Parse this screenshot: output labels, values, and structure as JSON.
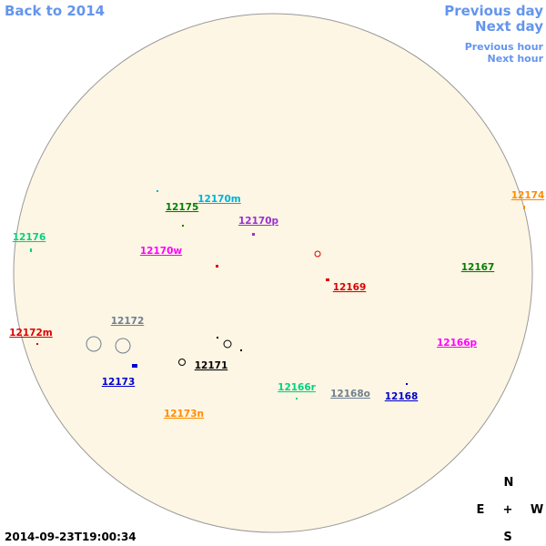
{
  "nav": {
    "back": "Back to 2014",
    "previous_day": "Previous day",
    "next_day": "Next day",
    "previous_hour": "Previous hour",
    "next_hour": "Next hour"
  },
  "regions": [
    {
      "label": "12174",
      "color": "#ff8c00"
    },
    {
      "label": "12170m",
      "color": "#00b2d6"
    },
    {
      "label": "12175",
      "color": "#008000"
    },
    {
      "label": "12170p",
      "color": "#9932cc"
    },
    {
      "label": "12176",
      "color": "#00d37f"
    },
    {
      "label": "12170w",
      "color": "#ff00ff"
    },
    {
      "label": "12167",
      "color": "#008000"
    },
    {
      "label": "12169",
      "color": "#dd0000"
    },
    {
      "label": "12172",
      "color": "#708090"
    },
    {
      "label": "12172m",
      "color": "#dd0000"
    },
    {
      "label": "12166p",
      "color": "#ff00ff"
    },
    {
      "label": "12171",
      "color": "#000000"
    },
    {
      "label": "12173",
      "color": "#0000cd"
    },
    {
      "label": "12166r",
      "color": "#00d37f"
    },
    {
      "label": "12168o",
      "color": "#708090"
    },
    {
      "label": "12168",
      "color": "#0000cd"
    },
    {
      "label": "12173n",
      "color": "#ff8c00"
    }
  ],
  "compass": {
    "north": "N",
    "east": "E",
    "center": "+",
    "west": "W",
    "south": "S"
  },
  "timestamp": "2014-09-23T19:00:34"
}
